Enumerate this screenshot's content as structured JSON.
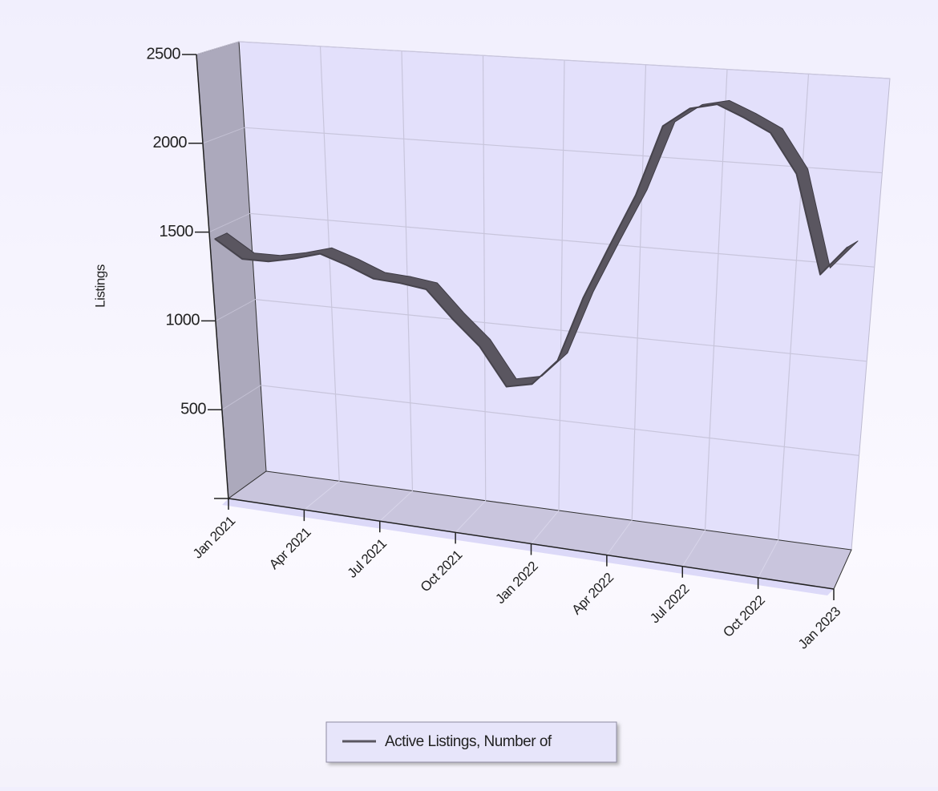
{
  "chart_data": {
    "type": "line",
    "y_label": "Listings",
    "categories": [
      "Jan 2021",
      null,
      null,
      "Apr 2021",
      null,
      null,
      "Jul 2021",
      null,
      null,
      "Oct 2021",
      null,
      null,
      "Jan 2022",
      null,
      null,
      "Apr 2022",
      null,
      null,
      "Jul 2022",
      null,
      null,
      "Oct 2022",
      null,
      null,
      "Jan 2023"
    ],
    "series": [
      {
        "name": "Active Listings, Number of",
        "color": "#5a5660",
        "values": [
          1450,
          1350,
          1350,
          1380,
          1420,
          1370,
          1310,
          1300,
          1280,
          1130,
          1000,
          800,
          830,
          970,
          1315,
          1600,
          1880,
          2250,
          2350,
          2380,
          2320,
          2250,
          2050,
          1550,
          1700
        ]
      }
    ],
    "ylim": [
      0,
      2500
    ],
    "yticks": [
      500,
      1000,
      1500,
      2000,
      2500
    ],
    "grid": true,
    "legend": "bottom"
  }
}
